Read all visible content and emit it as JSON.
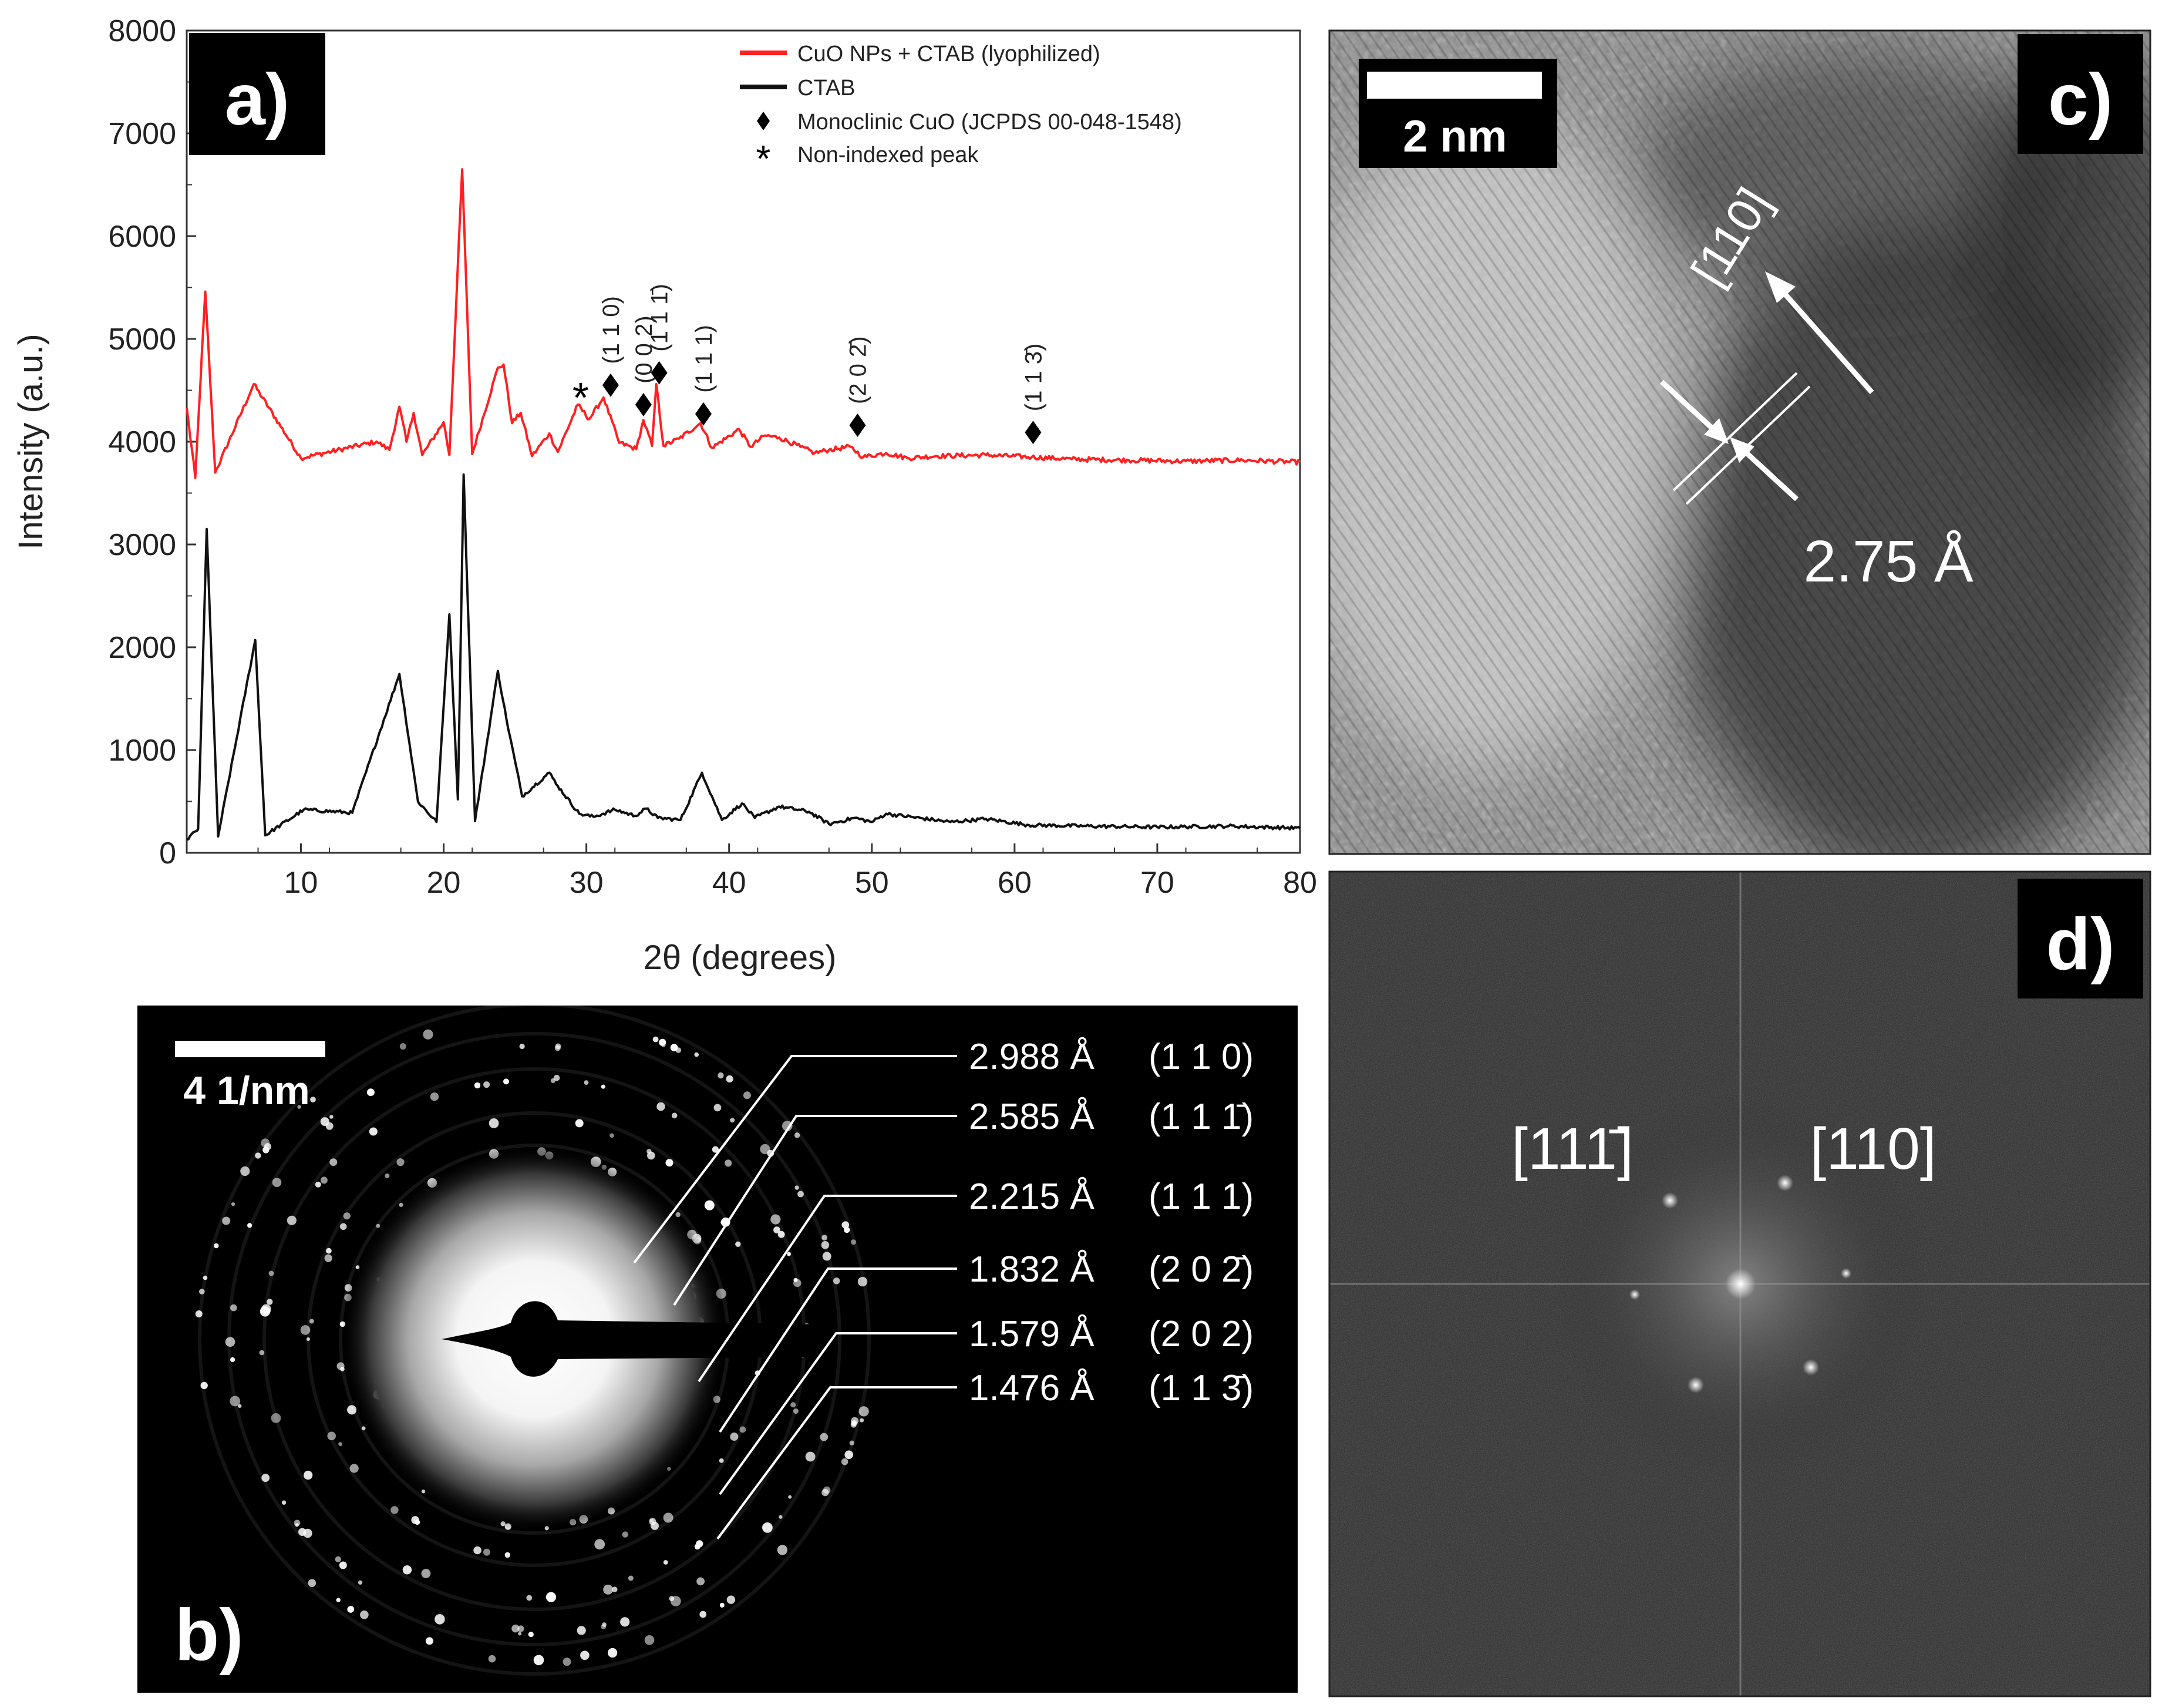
{
  "chart_data": [
    {
      "panel": "a)",
      "type": "line",
      "xlabel": "2θ (degrees)",
      "ylabel": "Intensity (a.u.)",
      "xlim": [
        2,
        80
      ],
      "ylim": [
        0,
        8000
      ],
      "x_ticks": [
        10,
        20,
        30,
        40,
        50,
        60,
        70,
        80
      ],
      "y_ticks": [
        0,
        1000,
        2000,
        3000,
        4000,
        5000,
        6000,
        7000,
        8000
      ],
      "grid": false,
      "legend_position": "top-right",
      "legend": [
        {
          "label": "CuO NPs + CTAB (lyophilized)",
          "marker": "line",
          "color": "#ff2020"
        },
        {
          "label": "CTAB",
          "marker": "line",
          "color": "#111111"
        },
        {
          "label": "Monoclinic CuO (JCPDS 00-048-1548)",
          "marker": "diamond",
          "color": "#000000"
        },
        {
          "label": "Non-indexed peak",
          "marker": "asterisk",
          "color": "#000000"
        }
      ],
      "series": [
        {
          "name": "CuO NPs + CTAB (lyophilized)",
          "color": "#ff2020",
          "baseline": 3790,
          "points": [
            [
              2,
              4330
            ],
            [
              2.6,
              3650
            ],
            [
              3.3,
              5460
            ],
            [
              4,
              3700
            ],
            [
              6.7,
              4560
            ],
            [
              10,
              3840
            ],
            [
              15.3,
              4000
            ],
            [
              16.2,
              3920
            ],
            [
              16.9,
              4340
            ],
            [
              17.4,
              4000
            ],
            [
              17.9,
              4280
            ],
            [
              18.5,
              3870
            ],
            [
              20.0,
              4190
            ],
            [
              20.4,
              3870
            ],
            [
              21.3,
              6650
            ],
            [
              22.0,
              3880
            ],
            [
              23.8,
              4720
            ],
            [
              24.2,
              4750
            ],
            [
              24.8,
              4180
            ],
            [
              25.4,
              4280
            ],
            [
              26.2,
              3860
            ],
            [
              27.4,
              4080
            ],
            [
              28.0,
              3900
            ],
            [
              29.4,
              4360
            ],
            [
              30.2,
              4220
            ],
            [
              31.2,
              4430
            ],
            [
              32.3,
              3990
            ],
            [
              33.5,
              3930
            ],
            [
              34.0,
              4210
            ],
            [
              34.6,
              3960
            ],
            [
              34.9,
              4560
            ],
            [
              35.4,
              3960
            ],
            [
              36.5,
              4030
            ],
            [
              38.0,
              4180
            ],
            [
              38.8,
              3940
            ],
            [
              40.7,
              4120
            ],
            [
              41.5,
              3950
            ],
            [
              42.5,
              4060
            ],
            [
              43.5,
              4040
            ],
            [
              45.0,
              3950
            ],
            [
              46.0,
              3890
            ],
            [
              47.0,
              3920
            ],
            [
              48.5,
              3950
            ],
            [
              49.4,
              3850
            ],
            [
              51.0,
              3890
            ],
            [
              52.5,
              3840
            ],
            [
              54.5,
              3860
            ],
            [
              58.0,
              3870
            ],
            [
              61.2,
              3850
            ],
            [
              64.0,
              3830
            ],
            [
              68.0,
              3820
            ],
            [
              72.0,
              3810
            ],
            [
              76.0,
              3820
            ],
            [
              80,
              3800
            ]
          ]
        },
        {
          "name": "CTAB",
          "color": "#111111",
          "baseline": 230,
          "points": [
            [
              2,
              130
            ],
            [
              2.8,
              230
            ],
            [
              3.4,
              3150
            ],
            [
              4.2,
              160
            ],
            [
              6.8,
              2070
            ],
            [
              7.5,
              170
            ],
            [
              10.2,
              420
            ],
            [
              13.6,
              390
            ],
            [
              16.9,
              1740
            ],
            [
              18.2,
              500
            ],
            [
              19.5,
              300
            ],
            [
              20.4,
              2320
            ],
            [
              21.0,
              520
            ],
            [
              21.4,
              3680
            ],
            [
              22.2,
              310
            ],
            [
              23.8,
              1770
            ],
            [
              24.4,
              1300
            ],
            [
              25.5,
              550
            ],
            [
              27.4,
              780
            ],
            [
              28.0,
              650
            ],
            [
              29.5,
              380
            ],
            [
              30.5,
              350
            ],
            [
              32.0,
              420
            ],
            [
              33.4,
              360
            ],
            [
              34.2,
              430
            ],
            [
              35.0,
              340
            ],
            [
              36.6,
              320
            ],
            [
              38.1,
              780
            ],
            [
              39.5,
              320
            ],
            [
              40.9,
              480
            ],
            [
              41.8,
              340
            ],
            [
              43.5,
              450
            ],
            [
              45.6,
              400
            ],
            [
              47.0,
              280
            ],
            [
              48.8,
              340
            ],
            [
              50.0,
              300
            ],
            [
              51.0,
              380
            ],
            [
              55.5,
              300
            ],
            [
              58.0,
              330
            ],
            [
              61.0,
              270
            ],
            [
              65.0,
              260
            ],
            [
              70.0,
              250
            ],
            [
              75.0,
              260
            ],
            [
              80,
              240
            ]
          ]
        }
      ],
      "diamond_markers": [
        {
          "x": 31.7,
          "y": 4550,
          "label": "(1 1 0)"
        },
        {
          "x": 34.0,
          "y": 4360,
          "label": "(0 0 2)"
        },
        {
          "x": 35.1,
          "y": 4670,
          "label": "(1 1 1̄)"
        },
        {
          "x": 38.2,
          "y": 4270,
          "label": "(1 1 1)"
        },
        {
          "x": 49.0,
          "y": 4160,
          "label": "(2 0 2̄)"
        },
        {
          "x": 61.3,
          "y": 4090,
          "label": "(1 1 3̄)"
        }
      ],
      "asterisk_markers": [
        {
          "x": 29.6,
          "y": 4480
        }
      ]
    }
  ],
  "panel_b": {
    "label": "b)",
    "scale_label": "4 1/nm",
    "annotations": [
      {
        "d": "2.988 Å",
        "hkl": "(1 1 0)"
      },
      {
        "d": "2.585 Å",
        "hkl": "(1 1 1̄)"
      },
      {
        "d": "2.215 Å",
        "hkl": "(1 1 1)"
      },
      {
        "d": "1.832 Å",
        "hkl": "(2 0 2̄)"
      },
      {
        "d": "1.579 Å",
        "hkl": "(2 0 2)"
      },
      {
        "d": "1.476 Å",
        "hkl": "(1 1 3̄)"
      }
    ]
  },
  "panel_c": {
    "label": "c)",
    "scale_label": "2 nm",
    "direction_label": "[110]",
    "spacing_label": "2.75 Å"
  },
  "panel_d": {
    "label": "d)",
    "spot_labels": [
      "[111̄]",
      "[110]"
    ]
  }
}
